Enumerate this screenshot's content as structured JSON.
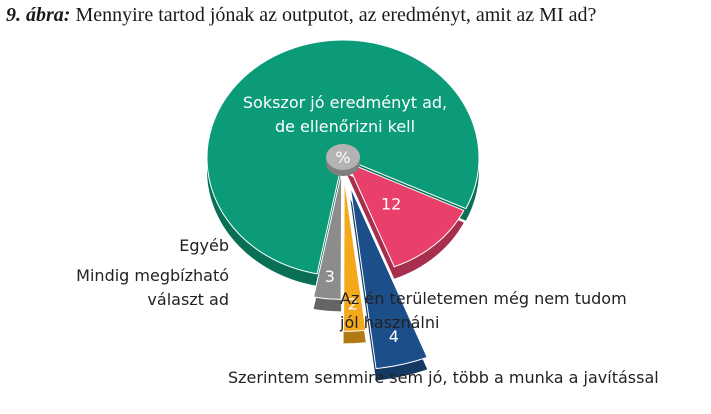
{
  "title": {
    "number": "9. ábra:",
    "text": "Mennyire tartod jónak az outputot, az eredményt, amit az MI ad?"
  },
  "chart_data": {
    "type": "pie",
    "center_label": "%",
    "slices": [
      {
        "label": "Sokszor jó eredményt ad, de ellenőrizni kell",
        "label_lines": [
          "Sokszor jó eredményt ad,",
          "de ellenőrizni kell"
        ],
        "value": 79,
        "value_text": "",
        "color": "#0c9b78"
      },
      {
        "label": "Az én területemen még nem tudom jól használni",
        "label_lines": [
          "Az én területemen még nem tudom",
          "jól használni"
        ],
        "value": 12,
        "value_text": "12",
        "color": "#e8406a"
      },
      {
        "label": "Szerintem semmire sem jó, több a munka a javítással",
        "label_lines": [
          "Szerintem semmire sem jó, több a munka a javítással"
        ],
        "value": 4,
        "value_text": "4",
        "color": "#1c4f8a"
      },
      {
        "label": "Mindig megbízható választ ad",
        "label_lines": [
          "Mindig megbízható",
          "választ ad"
        ],
        "value": 2,
        "value_text": "2",
        "color": "#f4a81c"
      },
      {
        "label": "Egyéb",
        "label_lines": [
          "Egyéb"
        ],
        "value": 3,
        "value_text": "3",
        "color": "#8c8c8c"
      }
    ]
  }
}
